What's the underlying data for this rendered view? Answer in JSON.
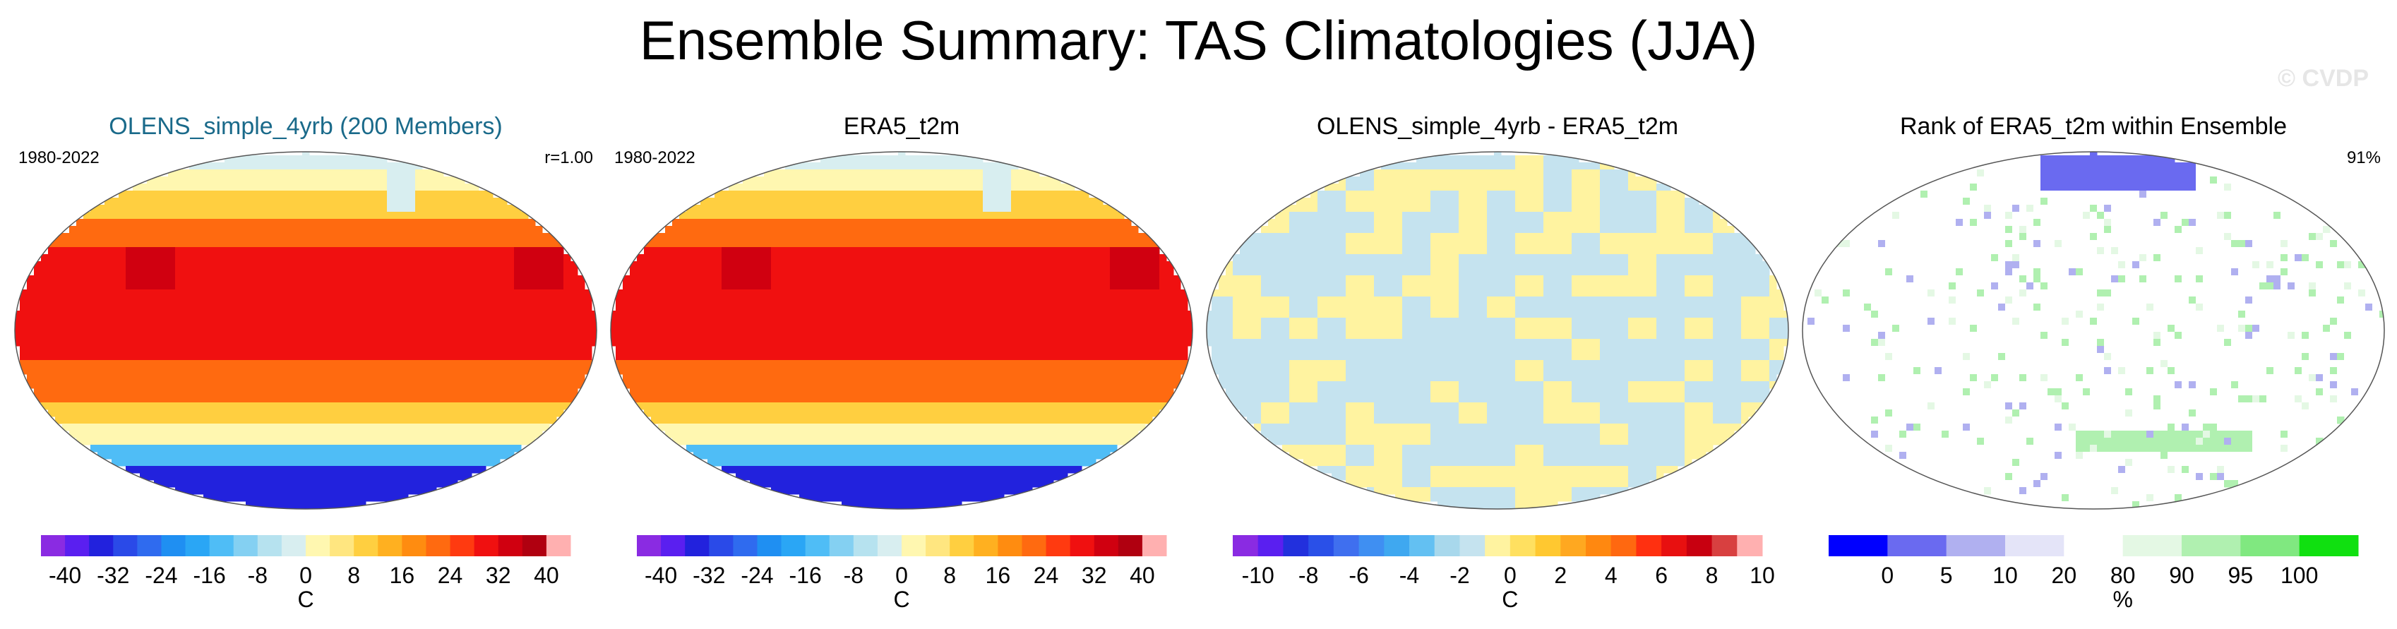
{
  "title": "Ensemble Summary: TAS Climatologies (JJA)",
  "watermark": "© CVDP",
  "chart_data": [
    {
      "type": "heatmap",
      "title": "OLENS_simple_4yrb (200 Members)",
      "title_color": "#1a6a8a",
      "period": "1980-2022",
      "stat": "r=1.00",
      "colorbar": {
        "unit": "C",
        "ticks": [
          "-40",
          "-32",
          "-24",
          "-16",
          "-8",
          "0",
          "8",
          "16",
          "24",
          "32",
          "40"
        ],
        "levels": [
          -40,
          -36,
          -32,
          -28,
          -24,
          -20,
          -16,
          -12,
          -8,
          -4,
          0,
          4,
          8,
          12,
          16,
          20,
          24,
          28,
          32,
          36,
          40
        ],
        "colors": [
          "#8a2be2",
          "#5a1ff0",
          "#2222dd",
          "#2a4ae8",
          "#2f6bef",
          "#1f8ff2",
          "#2aa6f5",
          "#4fbdf6",
          "#84d0f2",
          "#b6e2ef",
          "#d8eef0",
          "#fff7b0",
          "#ffe680",
          "#ffcf40",
          "#ffb020",
          "#ff8c10",
          "#ff6a10",
          "#ff3a10",
          "#f01010",
          "#d00010",
          "#b00010",
          "#ffb0b0"
        ]
      }
    },
    {
      "type": "heatmap",
      "title": "ERA5_t2m",
      "period": "1980-2022",
      "colorbar": {
        "unit": "C",
        "ticks": [
          "-40",
          "-32",
          "-24",
          "-16",
          "-8",
          "0",
          "8",
          "16",
          "24",
          "32",
          "40"
        ],
        "levels": [
          -40,
          -36,
          -32,
          -28,
          -24,
          -20,
          -16,
          -12,
          -8,
          -4,
          0,
          4,
          8,
          12,
          16,
          20,
          24,
          28,
          32,
          36,
          40
        ],
        "colors": [
          "#8a2be2",
          "#5a1ff0",
          "#2222dd",
          "#2a4ae8",
          "#2f6bef",
          "#1f8ff2",
          "#2aa6f5",
          "#4fbdf6",
          "#84d0f2",
          "#b6e2ef",
          "#d8eef0",
          "#fff7b0",
          "#ffe680",
          "#ffcf40",
          "#ffb020",
          "#ff8c10",
          "#ff6a10",
          "#ff3a10",
          "#f01010",
          "#d00010",
          "#b00010",
          "#ffb0b0"
        ]
      }
    },
    {
      "type": "heatmap",
      "title": "OLENS_simple_4yrb - ERA5_t2m",
      "colorbar": {
        "unit": "C",
        "ticks": [
          "-10",
          "-8",
          "-6",
          "-4",
          "-2",
          "0",
          "2",
          "4",
          "6",
          "8",
          "10"
        ],
        "levels": [
          -10,
          -9,
          -8,
          -7,
          -6,
          -5,
          -4,
          -3,
          -2,
          -1,
          0,
          1,
          2,
          3,
          4,
          5,
          6,
          7,
          8,
          9,
          10
        ],
        "colors": [
          "#8a2be2",
          "#5a1ff0",
          "#2230dd",
          "#2a50e8",
          "#3f6fef",
          "#3f8ff2",
          "#3fa8f0",
          "#63c0f2",
          "#a8d8ec",
          "#c5e3ef",
          "#fff3a0",
          "#ffe060",
          "#ffc830",
          "#ffa820",
          "#ff8810",
          "#ff6810",
          "#ff3010",
          "#e81010",
          "#c80010",
          "#d84040",
          "#ffb0b0"
        ]
      }
    },
    {
      "type": "heatmap",
      "title": "Rank of ERA5_t2m within Ensemble",
      "stat": "91%",
      "colorbar": {
        "unit": "%",
        "ticks": [
          "0",
          "5",
          "10",
          "20",
          "80",
          "90",
          "95",
          "100"
        ],
        "levels": [
          0,
          5,
          10,
          20,
          80,
          90,
          95,
          100
        ],
        "colors": [
          "#0000ff",
          "#6a6af0",
          "#b0b0f0",
          "#e4e4f8",
          "#ffffff",
          "#e4f8e4",
          "#b0f0b0",
          "#80e880",
          "#10e010"
        ]
      }
    }
  ]
}
